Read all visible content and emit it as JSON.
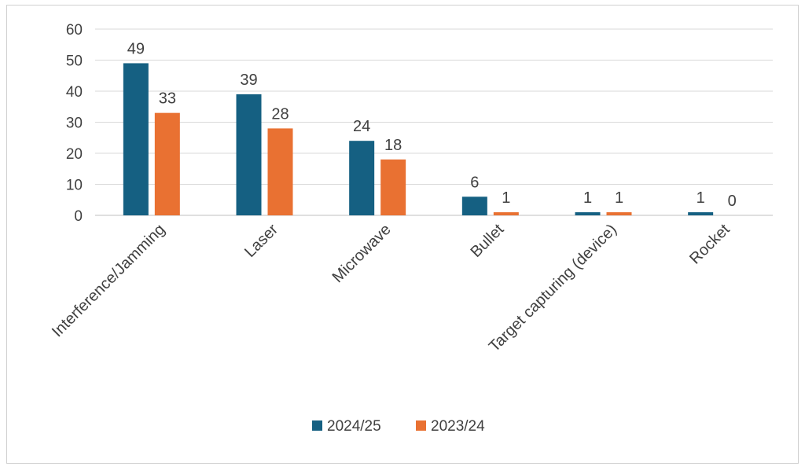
{
  "chart_data": {
    "type": "bar",
    "categories": [
      "Interference/Jamming",
      "Laser",
      "Microwave",
      "Bullet",
      "Target capturing (device)",
      "Rocket"
    ],
    "series": [
      {
        "name": "2024/25",
        "values": [
          49,
          39,
          24,
          6,
          1,
          1
        ],
        "color": "#156082"
      },
      {
        "name": "2023/24",
        "values": [
          33,
          28,
          18,
          1,
          1,
          0
        ],
        "color": "#E97132"
      }
    ],
    "yticks": [
      0,
      10,
      20,
      30,
      40,
      50,
      60
    ],
    "ylim": [
      0,
      60
    ],
    "grid": true,
    "legend": "bottom",
    "data_labels": true
  }
}
